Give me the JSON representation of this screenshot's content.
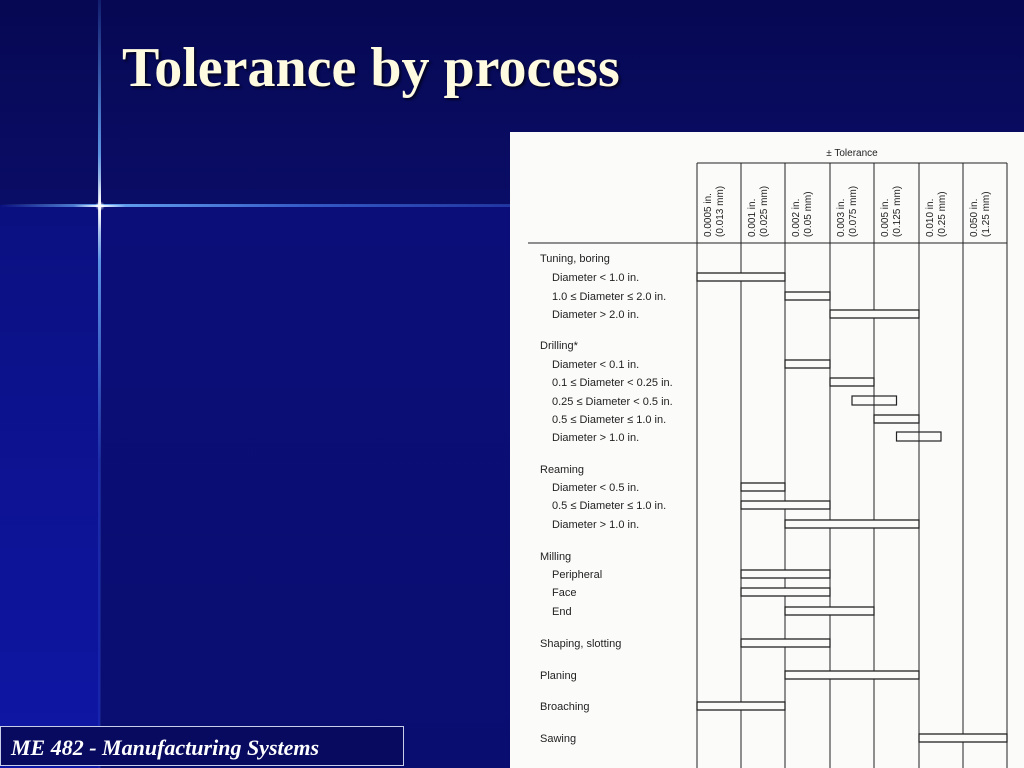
{
  "slide": {
    "title": "Tolerance by process",
    "footer": "ME 482 - Manufacturing Systems"
  },
  "colors": {
    "background": "#0a0c6a",
    "title": "#fffbe0",
    "accent_line": "#6eb4ff"
  },
  "table": {
    "header": "± Tolerance",
    "columns": [
      {
        "inch": "0.0005 in.",
        "mm": "(0.013 mm)"
      },
      {
        "inch": "0.001 in.",
        "mm": "(0.025 mm)"
      },
      {
        "inch": "0.002 in.",
        "mm": "(0.05 mm)"
      },
      {
        "inch": "0.003 in.",
        "mm": "(0.075 mm)"
      },
      {
        "inch": "0.005 in.",
        "mm": "(0.125 mm)"
      },
      {
        "inch": "0.010 in.",
        "mm": "(0.25 mm)"
      },
      {
        "inch": "0.050 in.",
        "mm": "(1.25 mm)"
      }
    ],
    "rows": [
      {
        "label": "Tuning, boring",
        "indent": 0,
        "bar": null
      },
      {
        "label": "Diameter < 1.0 in.",
        "indent": 1,
        "bar": {
          "from": 0,
          "to": 2,
          "style": "double"
        }
      },
      {
        "label": "1.0 ≤ Diameter ≤ 2.0 in.",
        "indent": 1,
        "bar": {
          "from": 2,
          "to": 3,
          "style": "double"
        }
      },
      {
        "label": "Diameter > 2.0 in.",
        "indent": 1,
        "bar": {
          "from": 3,
          "to": 5,
          "style": "double"
        }
      },
      {
        "label": "Drilling*",
        "indent": 0,
        "bar": null
      },
      {
        "label": "Diameter < 0.1 in.",
        "indent": 1,
        "bar": {
          "from": 2,
          "to": 3,
          "style": "double"
        }
      },
      {
        "label": "0.1 ≤ Diameter < 0.25 in.",
        "indent": 1,
        "bar": {
          "from": 3,
          "to": 4,
          "style": "double"
        }
      },
      {
        "label": "0.25 ≤ Diameter < 0.5 in.",
        "indent": 1,
        "bar": {
          "from": 3.5,
          "to": 4.5,
          "style": "box"
        }
      },
      {
        "label": "0.5 ≤ Diameter ≤ 1.0 in.",
        "indent": 1,
        "bar": {
          "from": 4,
          "to": 5,
          "style": "double"
        }
      },
      {
        "label": "Diameter > 1.0 in.",
        "indent": 1,
        "bar": {
          "from": 4.5,
          "to": 5.5,
          "style": "box"
        }
      },
      {
        "label": "Reaming",
        "indent": 0,
        "bar": null
      },
      {
        "label": "Diameter < 0.5 in.",
        "indent": 1,
        "bar": {
          "from": 1,
          "to": 2,
          "style": "double"
        }
      },
      {
        "label": "0.5 ≤ Diameter ≤ 1.0 in.",
        "indent": 1,
        "bar": {
          "from": 1,
          "to": 3,
          "style": "double"
        }
      },
      {
        "label": "Diameter > 1.0 in.",
        "indent": 1,
        "bar": {
          "from": 2,
          "to": 5,
          "style": "double"
        }
      },
      {
        "label": "Milling",
        "indent": 0,
        "bar": null
      },
      {
        "label": "Peripheral",
        "indent": 1,
        "bar": {
          "from": 1,
          "to": 3,
          "style": "double"
        }
      },
      {
        "label": "Face",
        "indent": 1,
        "bar": {
          "from": 1,
          "to": 3,
          "style": "double"
        }
      },
      {
        "label": "End",
        "indent": 1,
        "bar": {
          "from": 2,
          "to": 4,
          "style": "double"
        }
      },
      {
        "label": "Shaping, slotting",
        "indent": 0,
        "bar": {
          "from": 1,
          "to": 3,
          "style": "double"
        }
      },
      {
        "label": "Planing",
        "indent": 0,
        "bar": {
          "from": 2,
          "to": 5,
          "style": "double"
        }
      },
      {
        "label": "Broaching",
        "indent": 0,
        "bar": {
          "from": 0,
          "to": 2,
          "style": "double"
        }
      },
      {
        "label": "Sawing",
        "indent": 0,
        "bar": {
          "from": 5,
          "to": 7,
          "style": "double"
        }
      }
    ]
  }
}
